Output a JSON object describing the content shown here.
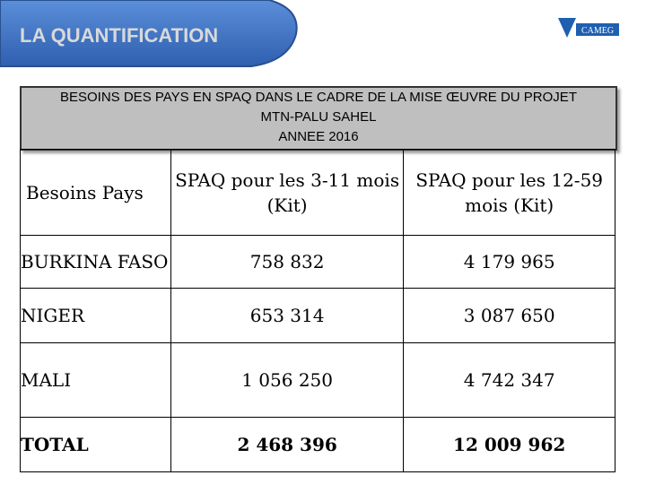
{
  "header": {
    "title": "LA QUANTIFICATION",
    "logo": "CAMEG"
  },
  "banner": {
    "lines": [
      "BESOINS DES PAYS EN SPAQ DANS LE CADRE DE LA MISE ŒUVRE DU PROJET",
      "MTN-PALU SAHEL",
      "ANNEE 2016"
    ]
  },
  "table": {
    "columns": [
      "Besoins Pays",
      "SPAQ  pour les 3-11 mois (Kit)",
      "SPAQ  pour les 12-59 mois  (Kit)"
    ],
    "rows": [
      [
        "BURKINA FASO",
        "758 832",
        "4 179 965"
      ],
      [
        "NIGER",
        "653 314",
        "3 087 650"
      ],
      [
        "MALI",
        "1 056 250",
        "4 742 347"
      ],
      [
        "TOTAL",
        "2 468 396",
        "12 009 962"
      ]
    ]
  }
}
